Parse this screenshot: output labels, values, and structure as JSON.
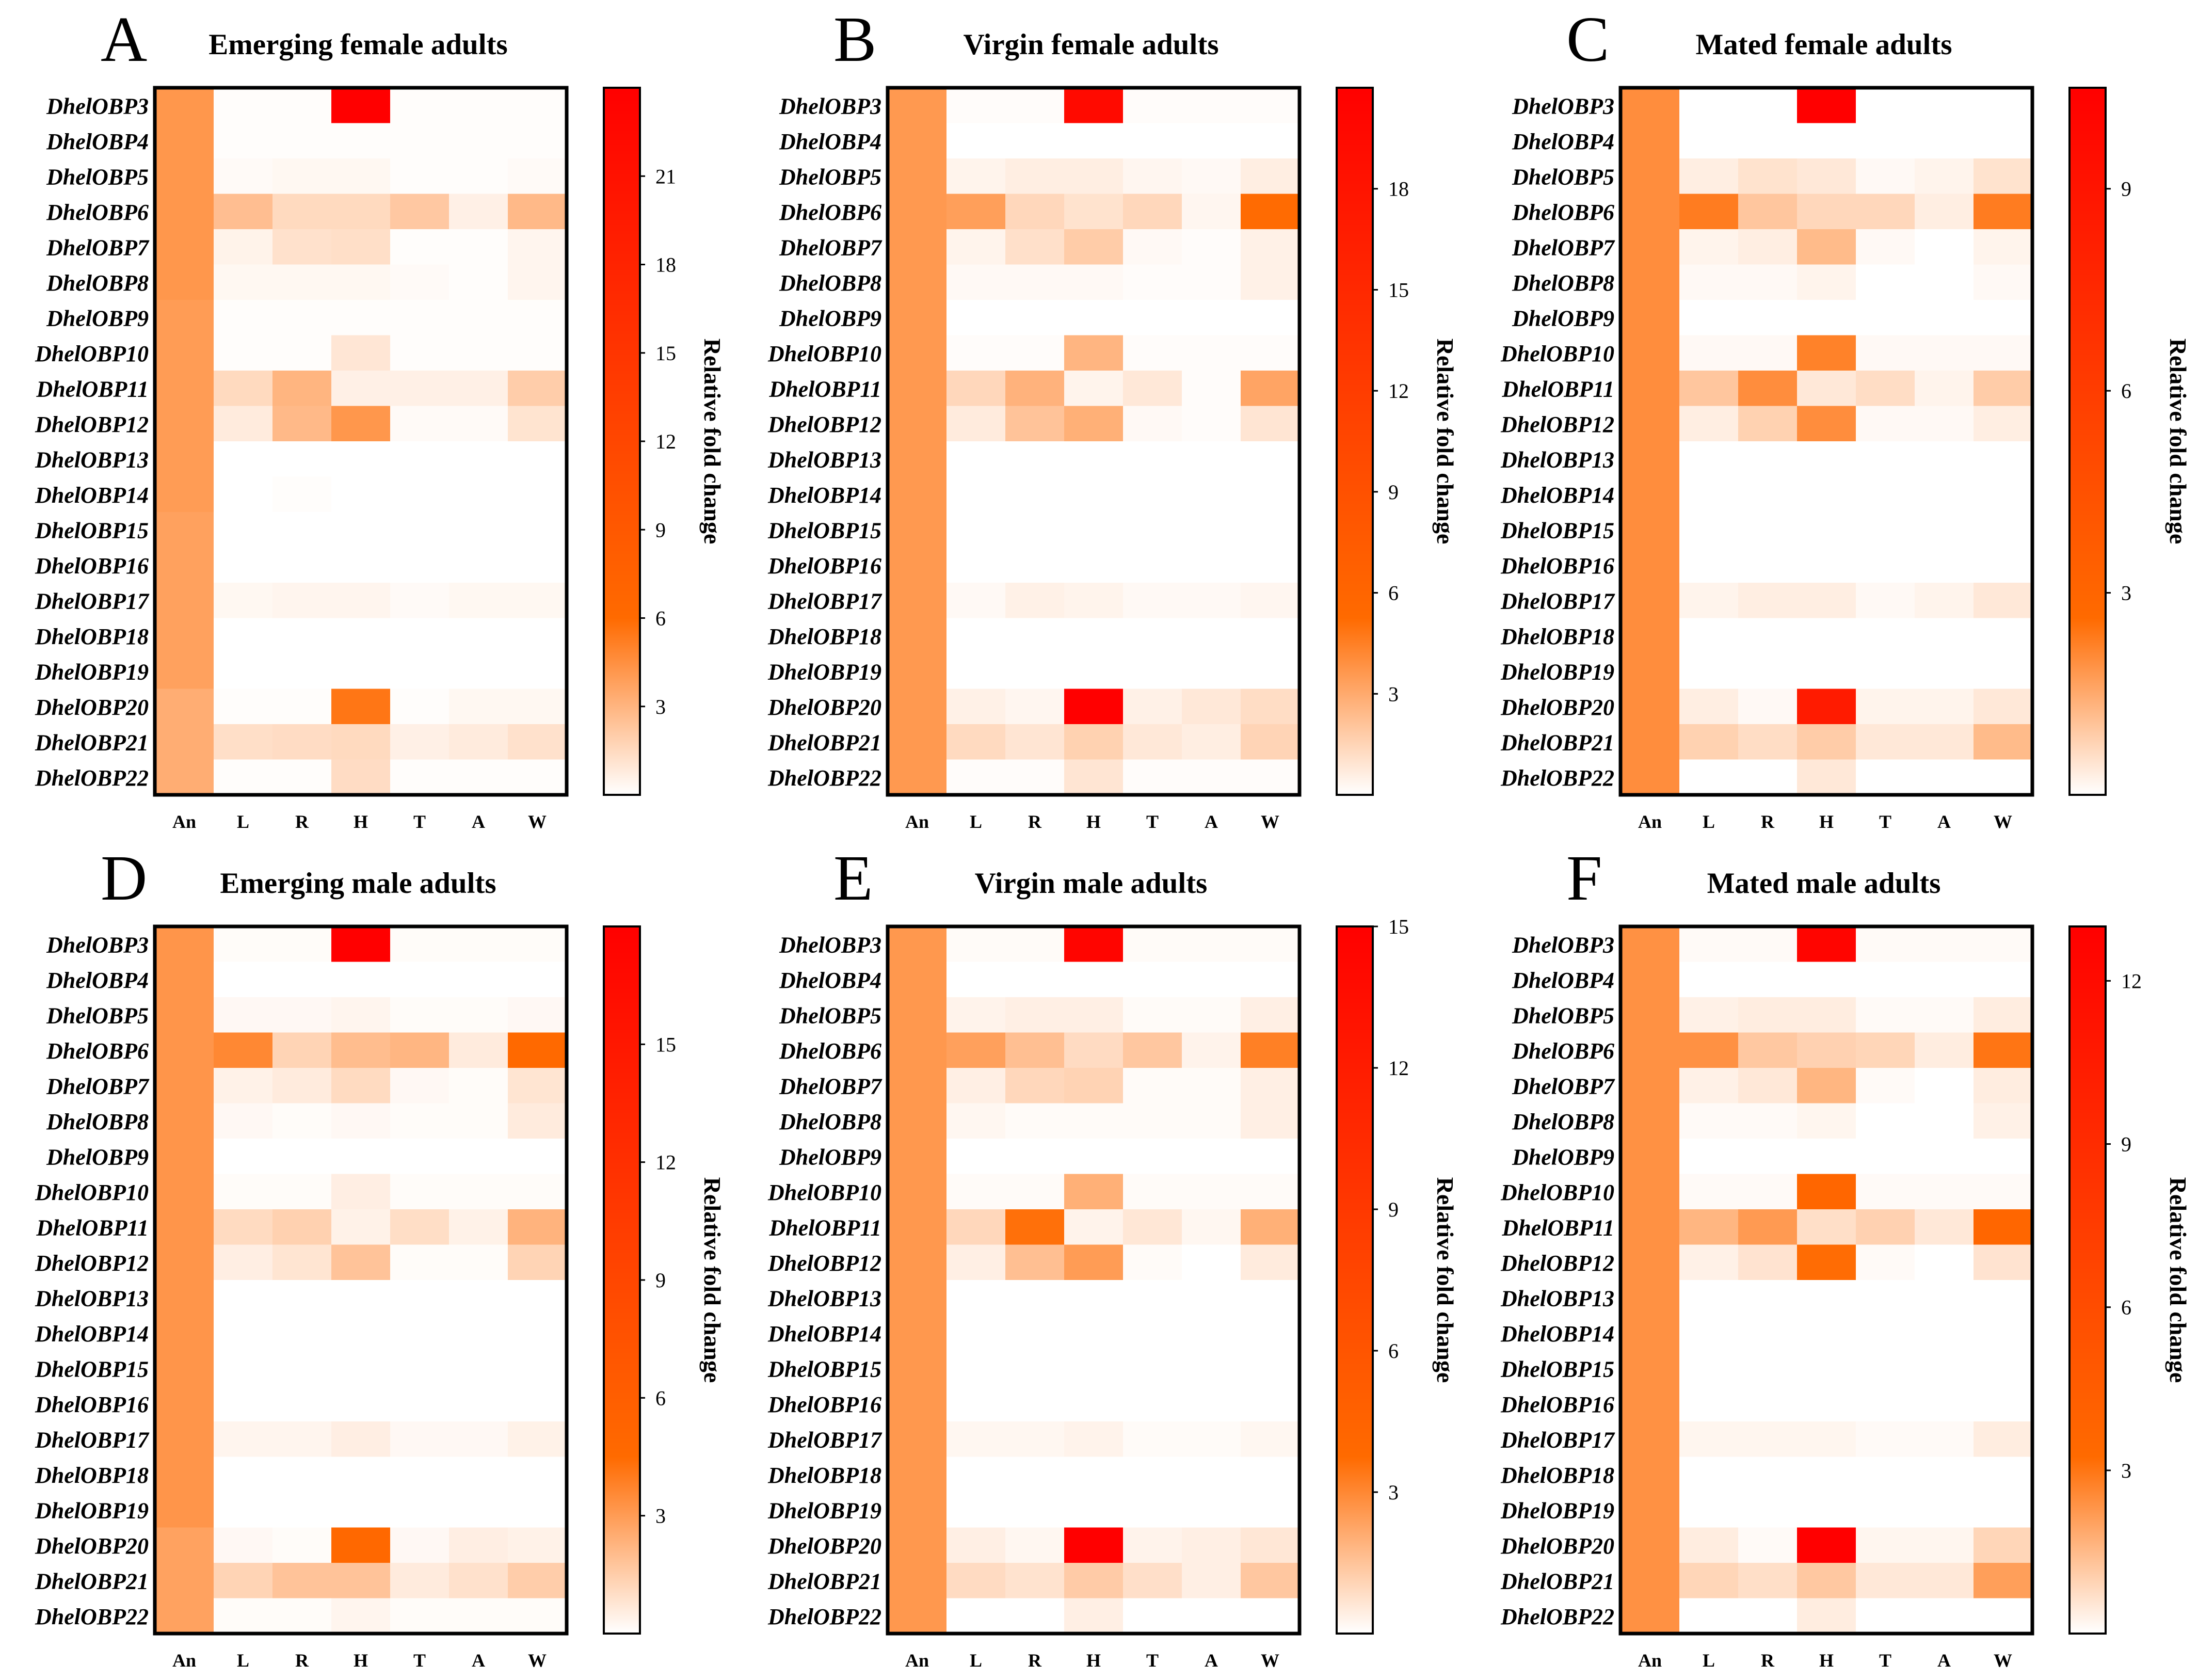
{
  "genes": [
    "DhelOBP3",
    "DhelOBP4",
    "DhelOBP5",
    "DhelOBP6",
    "DhelOBP7",
    "DhelOBP8",
    "DhelOBP9",
    "DhelOBP10",
    "DhelOBP11",
    "DhelOBP12",
    "DhelOBP13",
    "DhelOBP14",
    "DhelOBP15",
    "DhelOBP16",
    "DhelOBP17",
    "DhelOBP18",
    "DhelOBP19",
    "DhelOBP20",
    "DhelOBP21",
    "DhelOBP22"
  ],
  "tissues": [
    "An",
    "L",
    "R",
    "H",
    "T",
    "A",
    "W"
  ],
  "colorbar_label": "Relative fold change",
  "colors": {
    "low": "#ffffff",
    "mid": "#ff6a00",
    "high": "#ff0000",
    "frame": "#000000"
  },
  "chart_data": [
    {
      "type": "heatmap",
      "panel_letter": "A",
      "title": "Emerging female adults",
      "colorbar_ticks": [
        3,
        6,
        9,
        12,
        15,
        18,
        21
      ],
      "vmax": 24,
      "values": [
        [
          4.2,
          0.1,
          0.1,
          24,
          0.1,
          0.1,
          0.1
        ],
        [
          4.2,
          0.1,
          0.1,
          0.1,
          0.1,
          0.1,
          0.1
        ],
        [
          4.2,
          0.2,
          0.3,
          0.3,
          0.1,
          0.1,
          0.2
        ],
        [
          4.2,
          2.6,
          1.5,
          1.5,
          2.2,
          0.6,
          2.8
        ],
        [
          4.2,
          0.5,
          1.2,
          1.3,
          0.1,
          0.1,
          0.4
        ],
        [
          4.2,
          0.3,
          0.3,
          0.3,
          0.2,
          0.1,
          0.4
        ],
        [
          4.0,
          0.1,
          0.1,
          0.1,
          0.1,
          0.1,
          0.1
        ],
        [
          4.0,
          0.1,
          0.1,
          1.0,
          0.1,
          0.1,
          0.1
        ],
        [
          4.0,
          1.5,
          3.0,
          0.6,
          0.6,
          0.6,
          2.0
        ],
        [
          4.0,
          0.8,
          2.8,
          4.2,
          0.2,
          0.2,
          1.1
        ],
        [
          4.0,
          0.0,
          0.0,
          0.0,
          0.0,
          0.0,
          0.0
        ],
        [
          4.0,
          0.0,
          0.1,
          0.0,
          0.0,
          0.0,
          0.0
        ],
        [
          3.8,
          0.0,
          0.0,
          0.0,
          0.0,
          0.0,
          0.0
        ],
        [
          3.8,
          0.0,
          0.0,
          0.0,
          0.0,
          0.0,
          0.0
        ],
        [
          3.8,
          0.3,
          0.4,
          0.4,
          0.2,
          0.3,
          0.3
        ],
        [
          3.8,
          0.0,
          0.0,
          0.0,
          0.0,
          0.0,
          0.0
        ],
        [
          3.8,
          0.0,
          0.0,
          0.0,
          0.0,
          0.0,
          0.0
        ],
        [
          3.3,
          0.1,
          0.1,
          5.5,
          0.1,
          0.3,
          0.3
        ],
        [
          3.3,
          1.3,
          1.4,
          1.5,
          0.6,
          0.8,
          1.2
        ],
        [
          3.3,
          0.1,
          0.1,
          1.4,
          0.1,
          0.1,
          0.1
        ]
      ]
    },
    {
      "type": "heatmap",
      "panel_letter": "B",
      "title": "Virgin female adults",
      "colorbar_ticks": [
        3,
        6,
        9,
        12,
        15,
        18
      ],
      "vmax": 21,
      "values": [
        [
          3.6,
          0.1,
          0.1,
          19.5,
          0.1,
          0.1,
          0.1
        ],
        [
          3.6,
          0.0,
          0.0,
          0.0,
          0.0,
          0.0,
          0.0
        ],
        [
          3.6,
          0.4,
          0.6,
          0.6,
          0.3,
          0.2,
          0.6
        ],
        [
          3.6,
          3.4,
          1.4,
          1.0,
          1.4,
          0.3,
          5.2
        ],
        [
          3.6,
          0.4,
          1.1,
          1.8,
          0.2,
          0.1,
          0.5
        ],
        [
          3.6,
          0.2,
          0.2,
          0.2,
          0.1,
          0.1,
          0.5
        ],
        [
          3.6,
          0.0,
          0.0,
          0.0,
          0.0,
          0.0,
          0.0
        ],
        [
          3.6,
          0.1,
          0.1,
          2.6,
          0.1,
          0.1,
          0.1
        ],
        [
          3.6,
          1.4,
          2.7,
          0.4,
          0.8,
          0.1,
          3.2
        ],
        [
          3.6,
          0.7,
          2.1,
          2.8,
          0.2,
          0.1,
          0.9
        ],
        [
          3.6,
          0.0,
          0.0,
          0.0,
          0.0,
          0.0,
          0.0
        ],
        [
          3.6,
          0.0,
          0.0,
          0.0,
          0.0,
          0.0,
          0.0
        ],
        [
          3.6,
          0.0,
          0.0,
          0.0,
          0.0,
          0.0,
          0.0
        ],
        [
          3.6,
          0.0,
          0.0,
          0.0,
          0.0,
          0.0,
          0.0
        ],
        [
          3.6,
          0.2,
          0.5,
          0.4,
          0.2,
          0.2,
          0.3
        ],
        [
          3.6,
          0.0,
          0.0,
          0.0,
          0.0,
          0.0,
          0.0
        ],
        [
          3.6,
          0.0,
          0.0,
          0.0,
          0.0,
          0.0,
          0.0
        ],
        [
          3.6,
          0.5,
          0.3,
          21,
          0.5,
          0.8,
          1.2
        ],
        [
          3.6,
          1.3,
          0.9,
          1.6,
          0.8,
          0.6,
          1.5
        ],
        [
          3.6,
          0.1,
          0.1,
          0.9,
          0.1,
          0.1,
          0.1
        ]
      ]
    },
    {
      "type": "heatmap",
      "panel_letter": "C",
      "title": "Mated female adults",
      "colorbar_ticks": [
        3,
        6,
        9
      ],
      "vmax": 10.5,
      "values": [
        [
          2.0,
          0.0,
          0.0,
          10.5,
          0.0,
          0.0,
          0.0
        ],
        [
          2.0,
          0.0,
          0.0,
          0.0,
          0.0,
          0.0,
          0.0
        ],
        [
          2.0,
          0.3,
          0.5,
          0.4,
          0.1,
          0.2,
          0.5
        ],
        [
          2.0,
          2.3,
          1.0,
          0.7,
          0.7,
          0.3,
          2.3
        ],
        [
          2.0,
          0.2,
          0.3,
          1.2,
          0.1,
          0.0,
          0.2
        ],
        [
          2.0,
          0.1,
          0.1,
          0.2,
          0.0,
          0.0,
          0.1
        ],
        [
          2.0,
          0.0,
          0.0,
          0.0,
          0.0,
          0.0,
          0.0
        ],
        [
          2.0,
          0.1,
          0.1,
          2.2,
          0.1,
          0.1,
          0.1
        ],
        [
          2.0,
          1.0,
          2.0,
          0.4,
          0.6,
          0.2,
          0.9
        ],
        [
          2.0,
          0.3,
          0.8,
          2.0,
          0.1,
          0.1,
          0.3
        ],
        [
          2.0,
          0.0,
          0.0,
          0.0,
          0.0,
          0.0,
          0.0
        ],
        [
          2.0,
          0.0,
          0.0,
          0.0,
          0.0,
          0.0,
          0.0
        ],
        [
          2.0,
          0.0,
          0.0,
          0.0,
          0.0,
          0.0,
          0.0
        ],
        [
          2.0,
          0.0,
          0.0,
          0.0,
          0.0,
          0.0,
          0.0
        ],
        [
          2.0,
          0.2,
          0.3,
          0.3,
          0.1,
          0.2,
          0.4
        ],
        [
          2.0,
          0.0,
          0.0,
          0.0,
          0.0,
          0.0,
          0.0
        ],
        [
          2.0,
          0.0,
          0.0,
          0.0,
          0.0,
          0.0,
          0.0
        ],
        [
          2.0,
          0.3,
          0.1,
          8.5,
          0.2,
          0.2,
          0.4
        ],
        [
          2.0,
          0.8,
          0.6,
          0.9,
          0.4,
          0.4,
          1.2
        ],
        [
          2.0,
          0.0,
          0.0,
          0.4,
          0.0,
          0.0,
          0.0
        ]
      ]
    },
    {
      "type": "heatmap",
      "panel_letter": "D",
      "title": "Emerging male adults",
      "colorbar_ticks": [
        3,
        6,
        9,
        12,
        15
      ],
      "vmax": 18,
      "values": [
        [
          3.2,
          0.1,
          0.1,
          18,
          0.1,
          0.1,
          0.1
        ],
        [
          3.2,
          0.0,
          0.0,
          0.0,
          0.0,
          0.0,
          0.0
        ],
        [
          3.2,
          0.2,
          0.2,
          0.3,
          0.1,
          0.1,
          0.2
        ],
        [
          3.2,
          3.6,
          1.3,
          2.0,
          2.2,
          0.6,
          4.6
        ],
        [
          3.2,
          0.4,
          0.6,
          1.1,
          0.2,
          0.1,
          0.8
        ],
        [
          3.2,
          0.2,
          0.1,
          0.2,
          0.1,
          0.1,
          0.6
        ],
        [
          3.2,
          0.0,
          0.0,
          0.0,
          0.0,
          0.0,
          0.0
        ],
        [
          3.2,
          0.1,
          0.1,
          0.5,
          0.1,
          0.1,
          0.1
        ],
        [
          3.2,
          1.1,
          1.4,
          0.4,
          1.0,
          0.4,
          2.3
        ],
        [
          3.2,
          0.5,
          0.8,
          1.8,
          0.1,
          0.1,
          1.3
        ],
        [
          3.2,
          0.0,
          0.0,
          0.0,
          0.0,
          0.0,
          0.0
        ],
        [
          3.2,
          0.0,
          0.0,
          0.0,
          0.0,
          0.0,
          0.0
        ],
        [
          3.2,
          0.0,
          0.0,
          0.0,
          0.0,
          0.0,
          0.0
        ],
        [
          3.2,
          0.0,
          0.0,
          0.0,
          0.0,
          0.0,
          0.0
        ],
        [
          3.2,
          0.3,
          0.3,
          0.5,
          0.2,
          0.2,
          0.4
        ],
        [
          3.2,
          0.0,
          0.0,
          0.0,
          0.0,
          0.0,
          0.0
        ],
        [
          3.2,
          0.0,
          0.0,
          0.0,
          0.0,
          0.0,
          0.0
        ],
        [
          2.8,
          0.2,
          0.1,
          4.8,
          0.2,
          0.5,
          0.4
        ],
        [
          2.8,
          1.3,
          1.8,
          1.8,
          0.6,
          0.9,
          1.5
        ],
        [
          2.8,
          0.1,
          0.1,
          0.3,
          0.1,
          0.1,
          0.1
        ]
      ]
    },
    {
      "type": "heatmap",
      "panel_letter": "E",
      "title": "Virgin male adults",
      "colorbar_ticks": [
        3,
        6,
        9,
        12,
        15
      ],
      "vmax": 15,
      "values": [
        [
          2.6,
          0.1,
          0.1,
          14.5,
          0.1,
          0.1,
          0.1
        ],
        [
          2.6,
          0.0,
          0.0,
          0.0,
          0.0,
          0.0,
          0.0
        ],
        [
          2.6,
          0.3,
          0.4,
          0.4,
          0.1,
          0.1,
          0.4
        ],
        [
          2.6,
          2.4,
          1.6,
          0.9,
          1.4,
          0.3,
          3.2
        ],
        [
          2.6,
          0.4,
          1.0,
          1.1,
          0.1,
          0.1,
          0.4
        ],
        [
          2.6,
          0.2,
          0.1,
          0.1,
          0.1,
          0.1,
          0.4
        ],
        [
          2.6,
          0.0,
          0.0,
          0.0,
          0.0,
          0.0,
          0.0
        ],
        [
          2.6,
          0.1,
          0.1,
          2.0,
          0.1,
          0.1,
          0.1
        ],
        [
          2.6,
          1.0,
          3.6,
          0.3,
          0.6,
          0.2,
          2.0
        ],
        [
          2.6,
          0.4,
          1.6,
          2.5,
          0.1,
          0.0,
          0.5
        ],
        [
          2.6,
          0.0,
          0.0,
          0.0,
          0.0,
          0.0,
          0.0
        ],
        [
          2.6,
          0.0,
          0.0,
          0.0,
          0.0,
          0.0,
          0.0
        ],
        [
          2.6,
          0.0,
          0.0,
          0.0,
          0.0,
          0.0,
          0.0
        ],
        [
          2.6,
          0.0,
          0.0,
          0.0,
          0.0,
          0.0,
          0.0
        ],
        [
          2.6,
          0.2,
          0.2,
          0.3,
          0.1,
          0.1,
          0.2
        ],
        [
          2.6,
          0.0,
          0.0,
          0.0,
          0.0,
          0.0,
          0.0
        ],
        [
          2.6,
          0.0,
          0.0,
          0.0,
          0.0,
          0.0,
          0.0
        ],
        [
          2.6,
          0.4,
          0.2,
          15,
          0.3,
          0.4,
          0.6
        ],
        [
          2.6,
          0.9,
          0.7,
          1.3,
          0.8,
          0.4,
          1.4
        ],
        [
          2.6,
          0.0,
          0.0,
          0.4,
          0.0,
          0.0,
          0.0
        ]
      ]
    },
    {
      "type": "heatmap",
      "panel_letter": "F",
      "title": "Mated male adults",
      "colorbar_ticks": [
        3,
        6,
        9,
        12
      ],
      "vmax": 13,
      "values": [
        [
          2.4,
          0.1,
          0.1,
          12.5,
          0.1,
          0.1,
          0.1
        ],
        [
          2.4,
          0.0,
          0.0,
          0.0,
          0.0,
          0.0,
          0.0
        ],
        [
          2.4,
          0.3,
          0.4,
          0.4,
          0.1,
          0.1,
          0.4
        ],
        [
          2.4,
          2.4,
          1.2,
          1.0,
          0.9,
          0.4,
          3.0
        ],
        [
          2.4,
          0.3,
          0.5,
          1.6,
          0.1,
          0.0,
          0.4
        ],
        [
          2.4,
          0.1,
          0.1,
          0.2,
          0.0,
          0.0,
          0.3
        ],
        [
          2.4,
          0.0,
          0.0,
          0.0,
          0.0,
          0.0,
          0.0
        ],
        [
          2.4,
          0.1,
          0.1,
          3.6,
          0.1,
          0.1,
          0.1
        ],
        [
          2.4,
          1.6,
          2.2,
          0.7,
          1.0,
          0.5,
          3.6
        ],
        [
          2.4,
          0.3,
          0.6,
          3.2,
          0.1,
          0.0,
          0.6
        ],
        [
          2.4,
          0.0,
          0.0,
          0.0,
          0.0,
          0.0,
          0.0
        ],
        [
          2.4,
          0.0,
          0.0,
          0.0,
          0.0,
          0.0,
          0.0
        ],
        [
          2.4,
          0.0,
          0.0,
          0.0,
          0.0,
          0.0,
          0.0
        ],
        [
          2.4,
          0.0,
          0.0,
          0.0,
          0.0,
          0.0,
          0.0
        ],
        [
          2.4,
          0.2,
          0.2,
          0.2,
          0.1,
          0.1,
          0.4
        ],
        [
          2.4,
          0.0,
          0.0,
          0.0,
          0.0,
          0.0,
          0.0
        ],
        [
          2.4,
          0.0,
          0.0,
          0.0,
          0.0,
          0.0,
          0.0
        ],
        [
          2.4,
          0.4,
          0.1,
          13,
          0.2,
          0.2,
          0.9
        ],
        [
          2.4,
          0.9,
          0.7,
          1.2,
          0.5,
          0.5,
          2.1
        ],
        [
          2.4,
          0.0,
          0.0,
          0.4,
          0.0,
          0.0,
          0.0
        ]
      ]
    }
  ]
}
